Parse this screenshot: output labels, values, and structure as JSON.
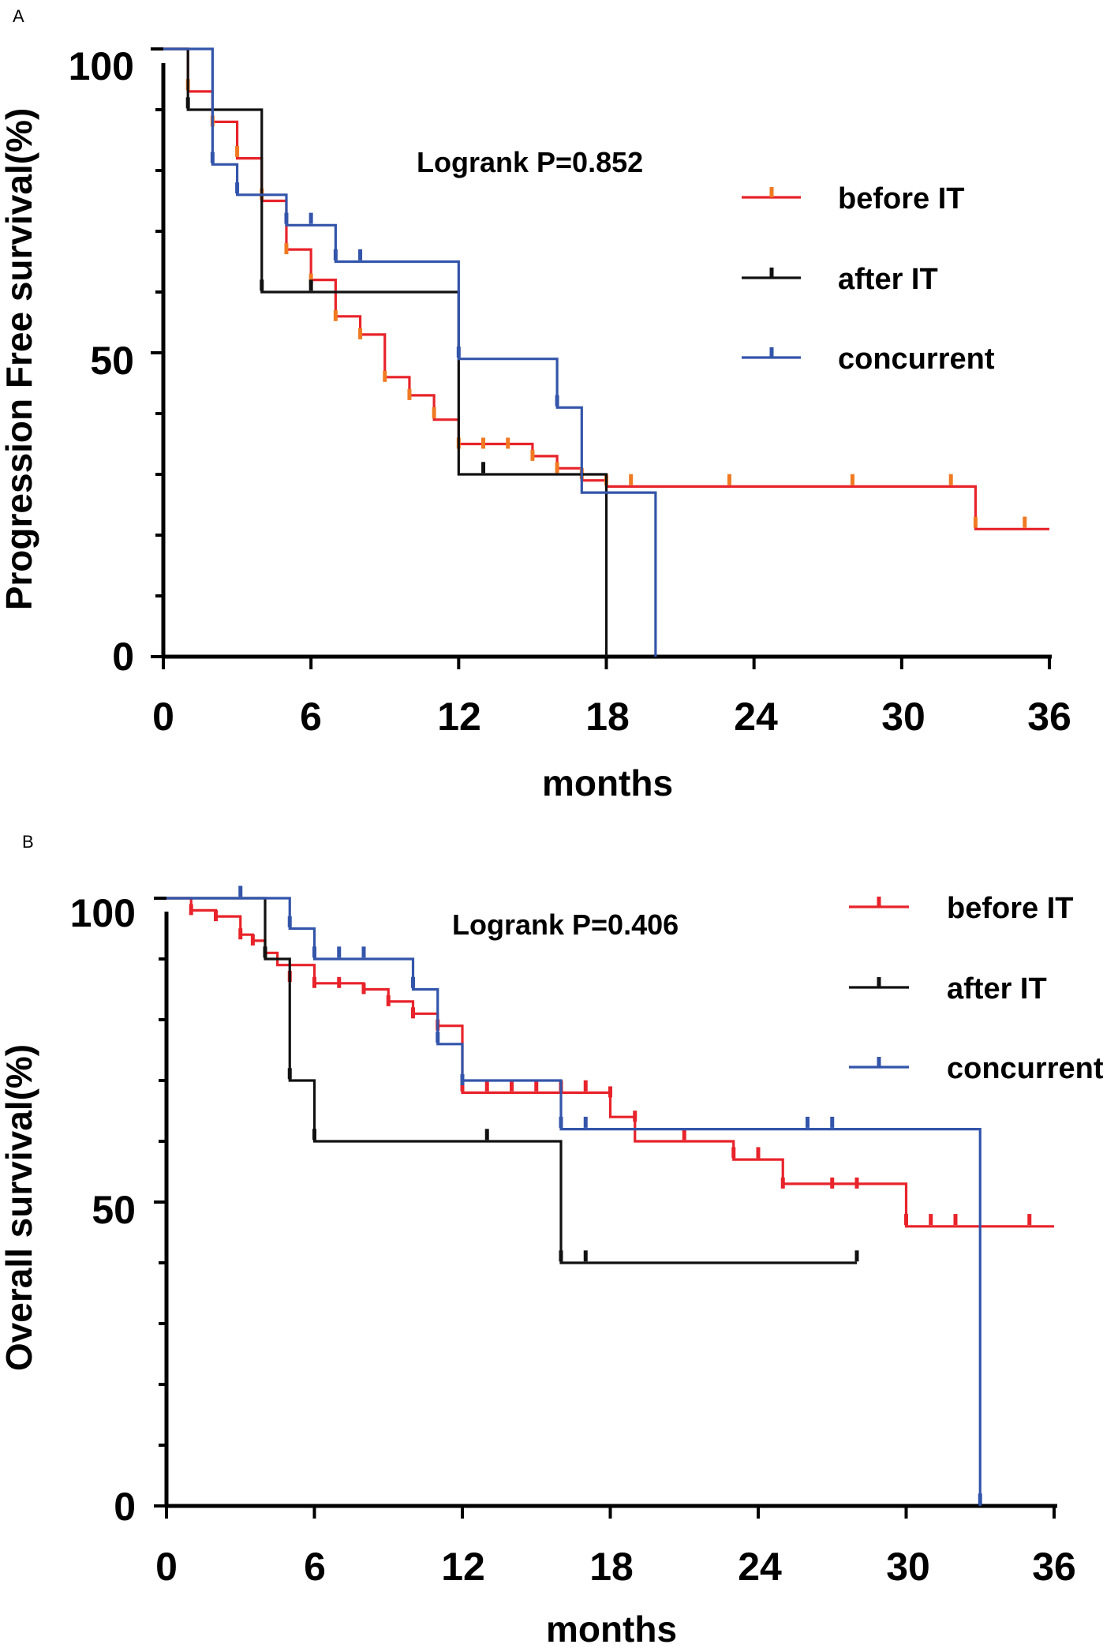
{
  "chart_data": [
    {
      "panel": "A",
      "type": "line",
      "title": "",
      "xlabel": "months",
      "ylabel": "Progression Free survival(%)",
      "xlim": [
        0,
        36
      ],
      "ylim": [
        0,
        100
      ],
      "xticks": [
        0,
        6,
        12,
        18,
        24,
        30,
        36
      ],
      "yticks": [
        0,
        50,
        100
      ],
      "annotation": "Logrank P=0.852",
      "legend_position": "top-right",
      "series": [
        {
          "name": "before IT",
          "color": "#e8232a",
          "censor_color": "#f07a22",
          "steps": [
            [
              0,
              100
            ],
            [
              1,
              93
            ],
            [
              2,
              88
            ],
            [
              3,
              82
            ],
            [
              4,
              75
            ],
            [
              5,
              67
            ],
            [
              6,
              62
            ],
            [
              7,
              56
            ],
            [
              8,
              53
            ],
            [
              9,
              46
            ],
            [
              10,
              43
            ],
            [
              11,
              39
            ],
            [
              12,
              35
            ],
            [
              15,
              33
            ],
            [
              16,
              31
            ],
            [
              17,
              29
            ],
            [
              18,
              28
            ],
            [
              33,
              21
            ],
            [
              36,
              21
            ]
          ],
          "censor": [
            [
              1,
              94
            ],
            [
              2,
              88
            ],
            [
              3,
              83
            ],
            [
              4,
              76
            ],
            [
              5,
              67
            ],
            [
              6,
              62
            ],
            [
              7,
              56
            ],
            [
              8,
              53
            ],
            [
              9,
              46
            ],
            [
              10,
              43
            ],
            [
              11,
              40
            ],
            [
              12,
              35
            ],
            [
              13,
              35
            ],
            [
              14,
              35
            ],
            [
              15,
              33
            ],
            [
              16,
              31
            ],
            [
              17,
              30
            ],
            [
              18,
              29
            ],
            [
              19,
              29
            ],
            [
              23,
              29
            ],
            [
              28,
              29
            ],
            [
              32,
              29
            ],
            [
              33,
              22
            ],
            [
              35,
              22
            ]
          ]
        },
        {
          "name": "after IT",
          "color": "#111111",
          "censor_color": "#111111",
          "steps": [
            [
              0,
              100
            ],
            [
              1,
              90
            ],
            [
              4,
              60
            ],
            [
              12,
              30
            ],
            [
              18,
              0
            ]
          ],
          "censor": [
            [
              1,
              91
            ],
            [
              4,
              61
            ],
            [
              6,
              61
            ],
            [
              13,
              31
            ]
          ]
        },
        {
          "name": "concurrent",
          "color": "#3355aa",
          "censor_color": "#3355aa",
          "steps": [
            [
              0,
              100
            ],
            [
              2,
              81
            ],
            [
              3,
              76
            ],
            [
              5,
              71
            ],
            [
              7,
              65
            ],
            [
              12,
              49
            ],
            [
              16,
              41
            ],
            [
              17,
              27
            ],
            [
              20,
              0
            ]
          ],
          "censor": [
            [
              2,
              82
            ],
            [
              3,
              77
            ],
            [
              5,
              72
            ],
            [
              6,
              72
            ],
            [
              7,
              66
            ],
            [
              8,
              66
            ],
            [
              12,
              50
            ],
            [
              16,
              42
            ]
          ]
        }
      ]
    },
    {
      "panel": "B",
      "type": "line",
      "title": "",
      "xlabel": "months",
      "ylabel": "Overall survival(%)",
      "xlim": [
        0,
        36
      ],
      "ylim": [
        0,
        100
      ],
      "xticks": [
        0,
        6,
        12,
        18,
        24,
        30,
        36
      ],
      "yticks": [
        0,
        50,
        100
      ],
      "annotation": "Logrank P=0.406",
      "legend_position": "top-right",
      "series": [
        {
          "name": "before IT",
          "color": "#e8232a",
          "censor_color": "#e8232a",
          "steps": [
            [
              0,
              100
            ],
            [
              1,
              98
            ],
            [
              2,
              97
            ],
            [
              3,
              94
            ],
            [
              3.5,
              93
            ],
            [
              4,
              91
            ],
            [
              4.5,
              89
            ],
            [
              6,
              86
            ],
            [
              8,
              85
            ],
            [
              8.5,
              85
            ],
            [
              9,
              83
            ],
            [
              10,
              81
            ],
            [
              11,
              79
            ],
            [
              12,
              68
            ],
            [
              18,
              64
            ],
            [
              19,
              60
            ],
            [
              23,
              57
            ],
            [
              25,
              53
            ],
            [
              30,
              46
            ],
            [
              36,
              46
            ]
          ],
          "censor": [
            [
              1,
              98
            ],
            [
              2,
              97
            ],
            [
              3,
              94
            ],
            [
              3.5,
              93
            ],
            [
              4,
              91
            ],
            [
              5,
              87
            ],
            [
              6,
              86
            ],
            [
              7,
              86
            ],
            [
              8,
              85
            ],
            [
              9,
              83
            ],
            [
              10,
              81
            ],
            [
              11,
              79
            ],
            [
              12,
              69
            ],
            [
              13,
              69
            ],
            [
              14,
              69
            ],
            [
              15,
              69
            ],
            [
              16,
              69
            ],
            [
              17,
              69
            ],
            [
              18,
              68
            ],
            [
              19,
              64
            ],
            [
              21,
              61
            ],
            [
              23,
              58
            ],
            [
              24,
              58
            ],
            [
              25,
              53
            ],
            [
              27,
              53
            ],
            [
              28,
              53
            ],
            [
              30,
              47
            ],
            [
              31,
              47
            ],
            [
              32,
              47
            ],
            [
              35,
              47
            ]
          ]
        },
        {
          "name": "after IT",
          "color": "#111111",
          "censor_color": "#111111",
          "steps": [
            [
              0,
              100
            ],
            [
              4,
              90
            ],
            [
              5,
              70
            ],
            [
              6,
              60
            ],
            [
              16,
              40
            ],
            [
              28,
              40
            ]
          ],
          "censor": [
            [
              4,
              91
            ],
            [
              5,
              71
            ],
            [
              6,
              61
            ],
            [
              13,
              61
            ],
            [
              16,
              41
            ],
            [
              17,
              41
            ],
            [
              28,
              41
            ]
          ]
        },
        {
          "name": "concurrent",
          "color": "#3355aa",
          "censor_color": "#3355aa",
          "steps": [
            [
              0,
              100
            ],
            [
              5,
              95
            ],
            [
              6,
              90
            ],
            [
              10,
              85
            ],
            [
              11,
              76
            ],
            [
              12,
              70
            ],
            [
              16,
              62
            ],
            [
              33,
              0
            ]
          ],
          "censor": [
            [
              3,
              101
            ],
            [
              5,
              96
            ],
            [
              6,
              91
            ],
            [
              7,
              91
            ],
            [
              8,
              91
            ],
            [
              10,
              86
            ],
            [
              11,
              77
            ],
            [
              12,
              70
            ],
            [
              16,
              63
            ],
            [
              17,
              63
            ],
            [
              26,
              63
            ],
            [
              27,
              63
            ],
            [
              33,
              1
            ]
          ]
        }
      ]
    }
  ]
}
